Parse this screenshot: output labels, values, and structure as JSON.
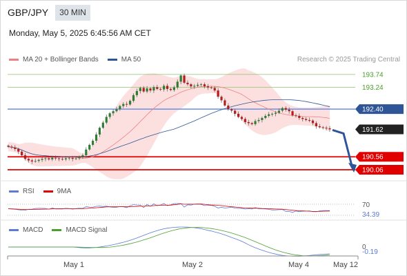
{
  "header": {
    "symbol": "GBP/JPY",
    "timeframe": "30 MIN",
    "datetime": "Monday, May 5, 2025 6:45:56 AM CET"
  },
  "legend": {
    "ma20_label": "MA 20 + Bollinger Bands",
    "ma20_color": "#f08080",
    "ma50_label": "MA 50",
    "ma50_color": "#2f5597"
  },
  "credit": "Research © 2025 Trading Central",
  "rsi_legend": {
    "rsi": "RSI",
    "rsi_color": "#5b7bd5",
    "ma": "9MA",
    "ma_color": "#e00000"
  },
  "macd_legend": {
    "macd": "MACD",
    "macd_color": "#5b7bd5",
    "signal": "MACD Signal",
    "signal_color": "#4aa02c"
  },
  "chart_data": {
    "type": "candlestick",
    "ylim": [
      189.9,
      193.95
    ],
    "levels": [
      {
        "label": "193.74",
        "value": 193.74,
        "kind": "resistance-green"
      },
      {
        "label": "193.24",
        "value": 193.24,
        "kind": "resistance-green"
      },
      {
        "label": "192.40",
        "value": 192.4,
        "kind": "pivot-blue"
      },
      {
        "label": "191.62",
        "value": 191.62,
        "kind": "last-price"
      },
      {
        "label": "190.56",
        "value": 190.56,
        "kind": "target-red"
      },
      {
        "label": "190.06",
        "value": 190.06,
        "kind": "target-red"
      }
    ],
    "close": [
      190.95,
      190.92,
      190.86,
      190.76,
      190.62,
      190.48,
      190.42,
      190.38,
      190.4,
      190.44,
      190.48,
      190.5,
      190.46,
      190.52,
      190.5,
      190.48,
      190.46,
      190.5,
      190.52,
      190.48,
      190.5,
      190.56,
      190.62,
      190.84,
      191.02,
      191.18,
      191.42,
      191.68,
      191.88,
      192.1,
      192.24,
      192.32,
      192.4,
      192.52,
      192.6,
      192.58,
      192.72,
      192.94,
      193.1,
      193.22,
      193.08,
      193.2,
      193.12,
      193.25,
      193.18,
      193.16,
      193.3,
      193.18,
      193.14,
      193.24,
      193.46,
      193.7,
      193.42,
      193.36,
      193.28,
      193.3,
      193.34,
      193.36,
      193.28,
      193.24,
      193.22,
      193.12,
      192.88,
      192.74,
      192.54,
      192.4,
      192.34,
      192.22,
      192.1,
      192.02,
      191.9,
      191.86,
      191.82,
      191.94,
      191.98,
      192.06,
      192.14,
      192.2,
      192.22,
      192.26,
      192.34,
      192.44,
      192.38,
      192.32,
      192.16,
      192.14,
      192.06,
      192.02,
      191.98,
      191.96,
      191.86,
      191.74,
      191.7,
      191.68,
      191.66,
      191.62
    ],
    "x_ticks": [
      "May 1",
      "May 2",
      "May 4",
      "May 12"
    ],
    "forecast": {
      "from": 191.62,
      "to": 190.06
    },
    "rsi": {
      "level_label": "70",
      "value_label": "34.39"
    },
    "macd": {
      "zero_label": "0",
      "value_label": "-0.19"
    }
  }
}
